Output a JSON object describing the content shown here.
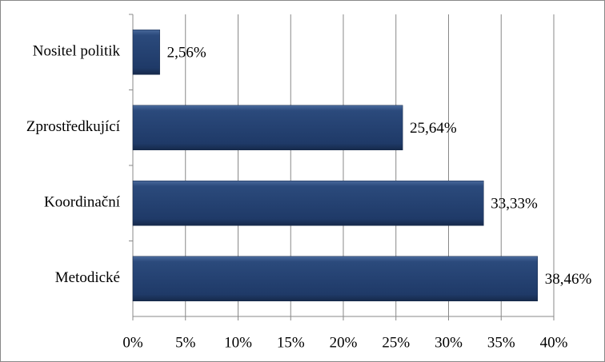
{
  "chart_data": {
    "type": "hbar",
    "categories": [
      "Nositel politik",
      "Zprostředkující",
      "Koordinační",
      "Metodické"
    ],
    "values": [
      2.56,
      25.64,
      33.33,
      38.46
    ],
    "value_labels": [
      "2,56%",
      "25,64%",
      "33,33%",
      "38,46%"
    ],
    "color": "#1f3a68",
    "xlim": [
      0,
      40
    ],
    "xticks": [
      {
        "value": 0,
        "label": "0%"
      },
      {
        "value": 5,
        "label": "5%"
      },
      {
        "value": 10,
        "label": "10%"
      },
      {
        "value": 15,
        "label": "15%"
      },
      {
        "value": 20,
        "label": "20%"
      },
      {
        "value": 25,
        "label": "25%"
      },
      {
        "value": 30,
        "label": "30%"
      },
      {
        "value": 35,
        "label": "35%"
      },
      {
        "value": 40,
        "label": "40%"
      }
    ],
    "grid": true
  }
}
